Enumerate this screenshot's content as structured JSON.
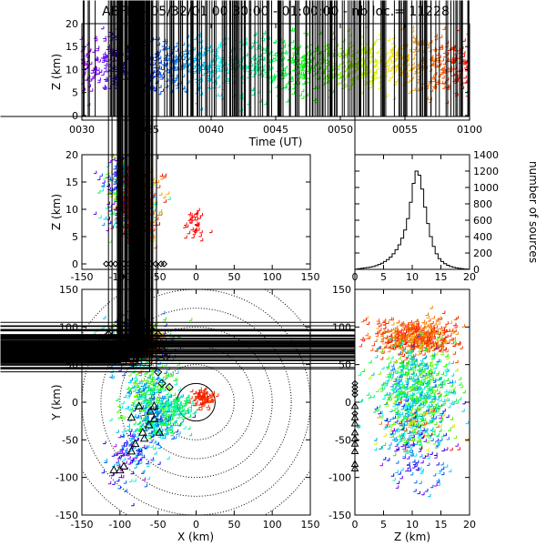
{
  "title": "ABFM - 05/32/01 00:30:00 - 01:00:00 - nb loc.=  11228",
  "chart_data": [
    {
      "id": "time-height",
      "type": "scatter",
      "xlabel": "Time (UT)",
      "ylabel": "Z (km)",
      "x_ticks": [
        "0030",
        "0035",
        "0040",
        "0045",
        "0050",
        "0055",
        "0100"
      ],
      "y_ticks": [
        0,
        5,
        10,
        15,
        20
      ],
      "xlim_minutes_ut": [
        30,
        60
      ],
      "ylim": [
        -1,
        20
      ],
      "color_scale": "rainbow by time (purple early, red late)",
      "marker": "plus"
    },
    {
      "id": "x-height",
      "type": "scatter",
      "xlabel": "",
      "ylabel": "Z (km)",
      "x_ticks": [
        -150,
        -100,
        -50,
        0,
        50,
        100,
        150
      ],
      "y_ticks": [
        0,
        5,
        10,
        15,
        20
      ],
      "xlim": [
        -150,
        150
      ],
      "ylim": [
        -1,
        20
      ],
      "marker": "plus",
      "station_marker": "diamond"
    },
    {
      "id": "height-histogram",
      "type": "bar",
      "ylabel": "number of sources",
      "x_ticks": [
        0,
        5,
        10,
        15,
        20
      ],
      "y_ticks": [
        0,
        200,
        400,
        600,
        800,
        1000,
        1200,
        1400
      ],
      "xlim": [
        0,
        20
      ],
      "ylim": [
        0,
        1400
      ],
      "bin_edges": [
        0,
        0.5,
        1,
        1.5,
        2,
        2.5,
        3,
        3.5,
        4,
        4.5,
        5,
        5.5,
        6,
        6.5,
        7,
        7.5,
        8,
        8.5,
        9,
        9.5,
        10,
        10.5,
        11,
        11.5,
        12,
        12.5,
        13,
        13.5,
        14,
        14.5,
        15,
        15.5,
        16,
        16.5,
        17,
        17.5,
        18,
        18.5,
        19,
        19.5,
        20
      ],
      "values": [
        3,
        8,
        12,
        18,
        22,
        28,
        35,
        45,
        60,
        75,
        95,
        120,
        150,
        190,
        240,
        300,
        380,
        480,
        620,
        820,
        1050,
        1200,
        1150,
        980,
        760,
        560,
        400,
        280,
        190,
        130,
        95,
        70,
        50,
        35,
        25,
        18,
        12,
        8,
        5,
        3
      ]
    },
    {
      "id": "plan-view",
      "type": "scatter",
      "xlabel": "X (km)",
      "ylabel": "Y (km)",
      "x_ticks": [
        -150,
        -100,
        -50,
        0,
        50,
        100,
        150
      ],
      "y_ticks": [
        -150,
        -100,
        -50,
        0,
        50,
        100,
        150
      ],
      "xlim": [
        -150,
        150
      ],
      "ylim": [
        -150,
        150
      ],
      "range_rings": [
        25,
        50,
        75,
        100,
        125,
        150,
        175
      ],
      "marker": "plus",
      "station_markers": [
        "diamond",
        "triangle"
      ]
    },
    {
      "id": "height-y",
      "type": "scatter",
      "xlabel": "Z (km)",
      "ylabel": "",
      "x_ticks": [
        0,
        5,
        10,
        15,
        20
      ],
      "y_ticks": [
        -150,
        -100,
        -50,
        0,
        50,
        100,
        150
      ],
      "xlim": [
        0,
        20
      ],
      "ylim": [
        -150,
        150
      ],
      "marker": "plus"
    }
  ]
}
